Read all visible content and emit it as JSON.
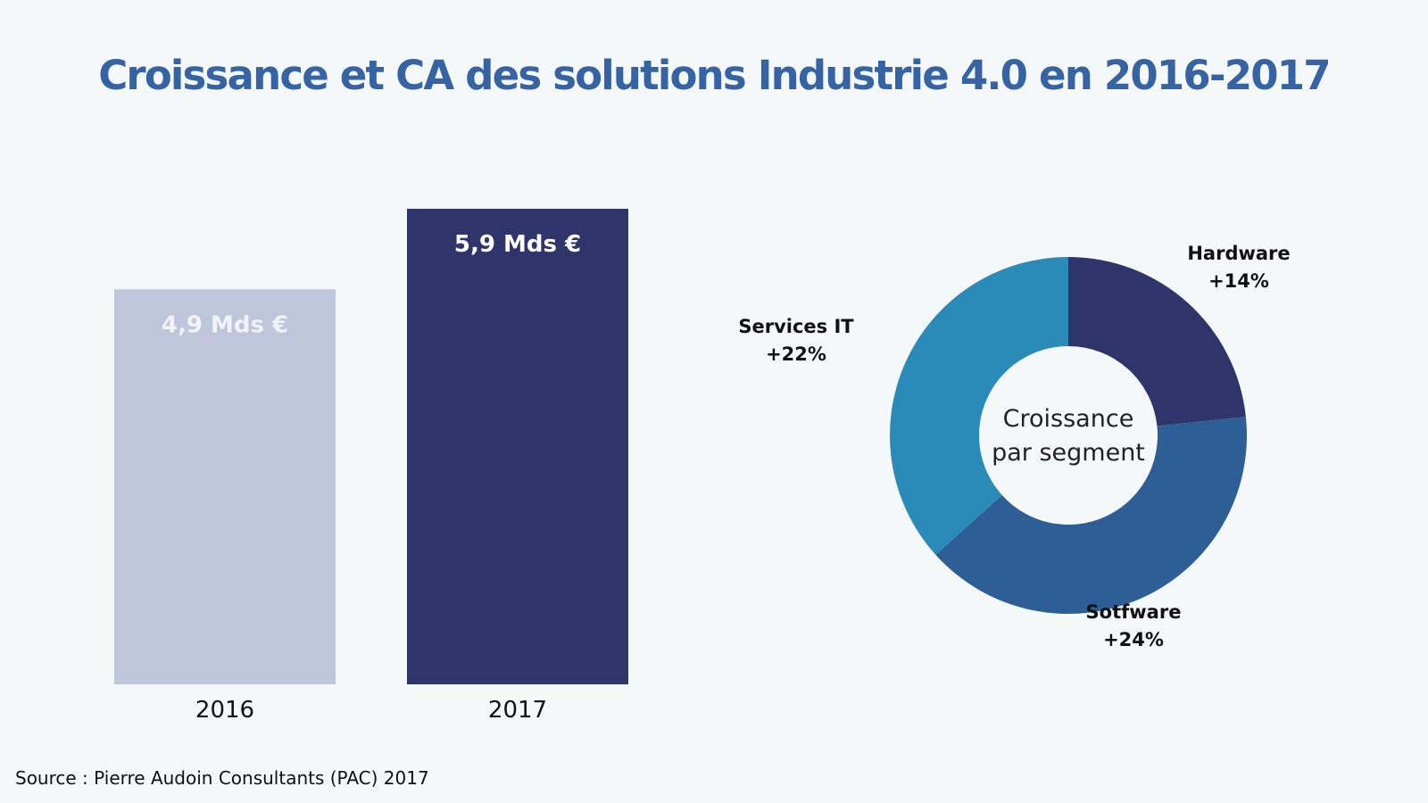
{
  "title": "Croissance et CA des solutions Industrie 4.0 en 2016-2017",
  "source": "Source : Pierre Audoin Consultants (PAC) 2017",
  "colors": {
    "bar_2016": "#bfc5da",
    "bar_2017": "#2f346a",
    "hardware": "#2f346a",
    "software": "#2d5e96",
    "services_it": "#2b8bb8",
    "title": "#3563a3"
  },
  "chart_data": [
    {
      "type": "bar",
      "categories": [
        "2016",
        "2017"
      ],
      "values": [
        4.9,
        5.9
      ],
      "data_labels": [
        "4,9 Mds €",
        "5,9 Mds €"
      ],
      "ylim": [
        0,
        5.9
      ],
      "grid": false
    },
    {
      "type": "pie",
      "donut": true,
      "center_label": [
        "Croissance",
        "par segment"
      ],
      "slices": [
        {
          "name": "Hardware",
          "label": "+14%",
          "value": 14
        },
        {
          "name": "Sotfware",
          "label": "+24%",
          "value": 24
        },
        {
          "name": "Services IT",
          "label": "+22%",
          "value": 22
        }
      ]
    }
  ]
}
